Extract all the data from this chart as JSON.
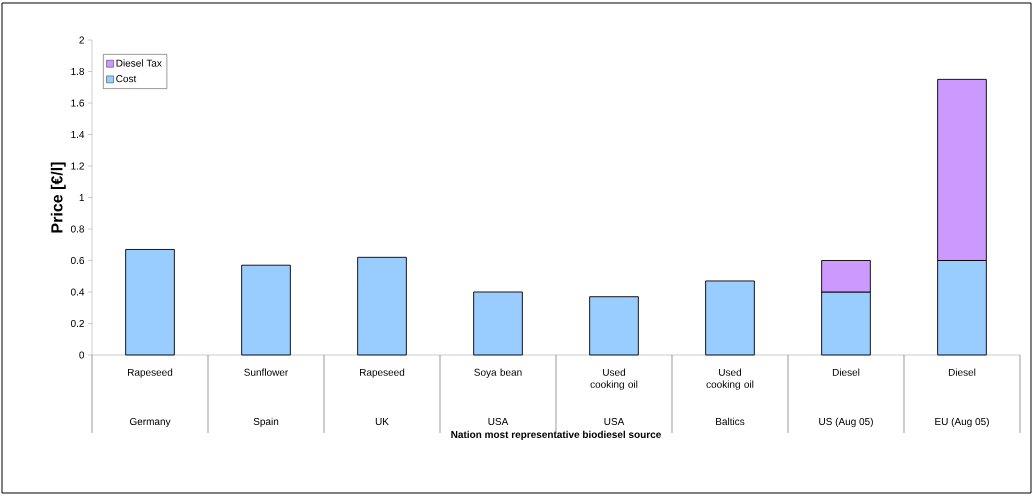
{
  "chart_data": {
    "type": "bar",
    "stacked": true,
    "ylabel": "Price [€/l]",
    "xlabel": "Nation most representative biodiesel source",
    "categories": [
      "Rapeseed",
      "Sunflower",
      "Rapeseed",
      "Soya bean",
      "Used cooking oil",
      "Used cooking oil",
      "Diesel",
      "Diesel"
    ],
    "annotations": [
      "Germany",
      "Spain",
      "UK",
      "USA",
      "USA",
      "Baltics",
      "US (Aug 05)",
      "EU (Aug 05)"
    ],
    "series": [
      {
        "name": "Cost",
        "color": "#99ccff",
        "values": [
          0.67,
          0.57,
          0.62,
          0.4,
          0.37,
          0.47,
          0.4,
          0.6
        ]
      },
      {
        "name": "Diesel Tax",
        "color": "#cc99ff",
        "values": [
          null,
          null,
          null,
          null,
          null,
          null,
          0.2,
          1.15
        ]
      }
    ],
    "ylim": [
      0,
      2
    ],
    "yticks": [
      0,
      0.2,
      0.4,
      0.6,
      0.8,
      1,
      1.2,
      1.4,
      1.6,
      1.8,
      2
    ],
    "grid": false,
    "legend": "top left"
  }
}
